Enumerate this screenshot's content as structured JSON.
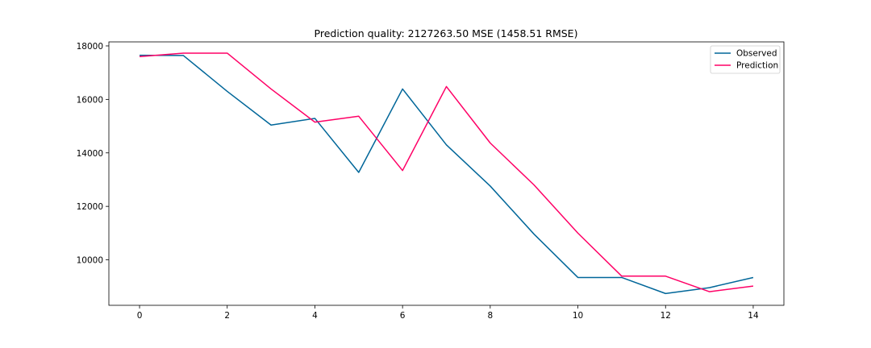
{
  "chart_data": {
    "type": "line",
    "title": "Prediction quality: 2127263.50 MSE (1458.51 RMSE)",
    "xlabel": "",
    "ylabel": "",
    "xlim": [
      -0.7,
      14.7
    ],
    "ylim": [
      8300,
      18150
    ],
    "x": [
      0,
      1,
      2,
      3,
      4,
      5,
      6,
      7,
      8,
      9,
      10,
      11,
      12,
      13,
      14
    ],
    "xticks": [
      0,
      2,
      4,
      6,
      8,
      10,
      12,
      14
    ],
    "yticks": [
      10000,
      12000,
      14000,
      16000,
      18000
    ],
    "grid": false,
    "legend": "top-right",
    "series": [
      {
        "name": "Observed",
        "color": "#006699",
        "values": [
          17650,
          17640,
          16300,
          15040,
          15290,
          13270,
          16390,
          14300,
          12760,
          10960,
          9340,
          9340,
          8740,
          8960,
          9340
        ]
      },
      {
        "name": "Prediction",
        "color": "#ff0066",
        "values": [
          17600,
          17730,
          17730,
          16390,
          15150,
          15370,
          13340,
          16480,
          14370,
          12800,
          11000,
          9390,
          9390,
          8810,
          9020
        ]
      }
    ]
  }
}
